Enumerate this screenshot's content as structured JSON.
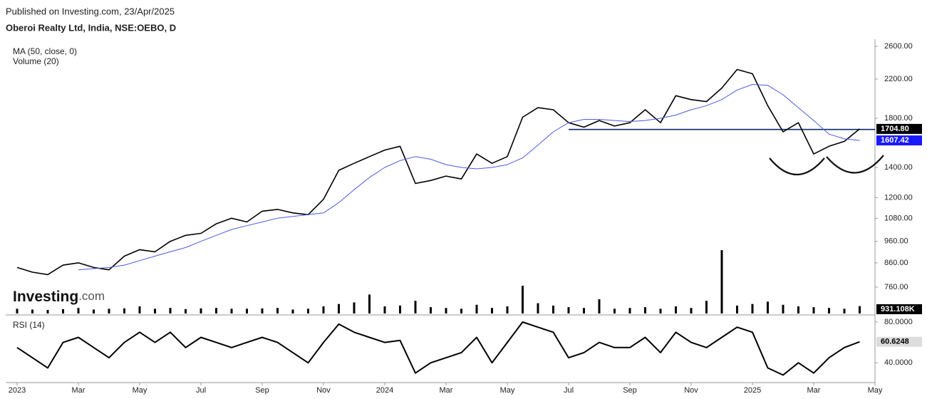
{
  "header": {
    "published": "Published on Investing.com, 23/Apr/2025",
    "instrument": "Oberoi Realty Ltd, India, NSE:OEBO, D",
    "logo_main": "Investing",
    "logo_suffix": ".com"
  },
  "chart_data": {
    "type": "line",
    "log_scale": true,
    "indicators": [
      "MA (50, close, 0)",
      "Volume (20)"
    ],
    "categories": [
      "2023",
      null,
      null,
      null,
      "Mar",
      null,
      null,
      null,
      "May",
      null,
      null,
      null,
      "Jul",
      null,
      null,
      null,
      "Sep",
      null,
      null,
      null,
      "Nov",
      null,
      null,
      null,
      "2024",
      null,
      null,
      null,
      "Mar",
      null,
      null,
      null,
      "May",
      null,
      null,
      null,
      "Jul",
      null,
      null,
      null,
      "Sep",
      null,
      null,
      null,
      "Nov",
      null,
      null,
      null,
      "2025",
      null,
      null,
      null,
      "Mar",
      null,
      null,
      null,
      "May"
    ],
    "series": [
      {
        "color": "#000000",
        "values": [
          840,
          820,
          810,
          850,
          860,
          840,
          830,
          890,
          920,
          910,
          960,
          990,
          1000,
          1050,
          1080,
          1060,
          1120,
          1130,
          1110,
          1100,
          1190,
          1380,
          1430,
          1480,
          1530,
          1560,
          1290,
          1310,
          1340,
          1320,
          1500,
          1430,
          1480,
          1810,
          1900,
          1880,
          1760,
          1720,
          1780,
          1730,
          1760,
          1880,
          1760,
          2020,
          1980,
          1960,
          2100,
          2310,
          2260,
          1920,
          1680,
          1760,
          1500,
          1560,
          1600,
          1704.8,
          null
        ],
        "value_labels": [
          null,
          null,
          null,
          null,
          null,
          null,
          null,
          null,
          null,
          null,
          null,
          null,
          null,
          null,
          null,
          null,
          null,
          null,
          null,
          null,
          null,
          null,
          null,
          null,
          null,
          null,
          null,
          null,
          null,
          null,
          null,
          null,
          null,
          null,
          null,
          null,
          null,
          null,
          null,
          null,
          null,
          null,
          null,
          null,
          null,
          null,
          null,
          null,
          null,
          null,
          null,
          null,
          null,
          null,
          null,
          "1704.80",
          null
        ]
      },
      {
        "color": "#4a5be0",
        "values": [
          null,
          null,
          null,
          null,
          830,
          835,
          840,
          850,
          870,
          890,
          910,
          930,
          960,
          990,
          1020,
          1040,
          1060,
          1080,
          1090,
          1100,
          1110,
          1170,
          1250,
          1330,
          1400,
          1450,
          1480,
          1460,
          1420,
          1400,
          1390,
          1400,
          1420,
          1470,
          1570,
          1680,
          1760,
          1790,
          1790,
          1780,
          1770,
          1780,
          1800,
          1830,
          1880,
          1920,
          1980,
          2080,
          2140,
          2130,
          2030,
          1900,
          1780,
          1660,
          1620,
          1607.42,
          null
        ]
      }
    ],
    "ylim": [
      664,
      2696
    ],
    "yticks": [
      {
        "value": 760,
        "label": "760.00"
      },
      {
        "value": 860,
        "label": "860.00"
      },
      {
        "value": 960,
        "label": "960.00"
      },
      {
        "value": 1080,
        "label": "1080.00"
      },
      {
        "value": 1200,
        "label": "1200.00"
      },
      {
        "value": 1400,
        "label": "1400.00"
      },
      {
        "value": 1800,
        "label": "1800.00"
      },
      {
        "value": 2200,
        "label": "2200.00"
      },
      {
        "value": 2600,
        "label": "2600.00"
      }
    ],
    "level_line": {
      "value": 1700,
      "from_index": 36,
      "color": "#0b2a6b"
    },
    "volume": {
      "type": "bar",
      "color": "#000000",
      "ylim": [
        0,
        9000
      ],
      "values": [
        600,
        500,
        450,
        550,
        700,
        500,
        600,
        650,
        900,
        600,
        700,
        550,
        650,
        700,
        600,
        600,
        650,
        700,
        500,
        600,
        900,
        1200,
        1400,
        2400,
        900,
        1000,
        1600,
        800,
        700,
        600,
        1100,
        700,
        900,
        3500,
        1300,
        1000,
        800,
        700,
        1800,
        600,
        700,
        800,
        600,
        900,
        700,
        1600,
        8000,
        1000,
        1200,
        1500,
        1100,
        900,
        800,
        700,
        600,
        931.108,
        null
      ],
      "value_labels": [
        null,
        null,
        null,
        null,
        null,
        null,
        null,
        null,
        null,
        null,
        null,
        null,
        null,
        null,
        null,
        null,
        null,
        null,
        null,
        null,
        null,
        null,
        null,
        null,
        null,
        null,
        null,
        null,
        null,
        null,
        null,
        null,
        null,
        null,
        null,
        null,
        null,
        null,
        null,
        null,
        null,
        null,
        null,
        null,
        null,
        null,
        null,
        null,
        null,
        null,
        null,
        null,
        null,
        null,
        null,
        "931.108K",
        null
      ]
    },
    "rsi": {
      "type": "line",
      "title": "RSI (14)",
      "color": "#000000",
      "ylim": [
        22,
        83.5
      ],
      "yticks": [
        {
          "value": 40,
          "label": "40.0000"
        },
        {
          "value": 80,
          "label": "80.0000"
        }
      ],
      "values": [
        55,
        45,
        35,
        60,
        65,
        55,
        45,
        60,
        70,
        60,
        70,
        55,
        65,
        60,
        55,
        60,
        65,
        60,
        50,
        40,
        60,
        78,
        70,
        65,
        60,
        62,
        30,
        40,
        45,
        50,
        65,
        40,
        60,
        80,
        75,
        70,
        45,
        50,
        60,
        55,
        55,
        65,
        50,
        70,
        60,
        55,
        65,
        75,
        70,
        35,
        28,
        40,
        30,
        45,
        55,
        60.6248,
        null
      ]
    }
  }
}
